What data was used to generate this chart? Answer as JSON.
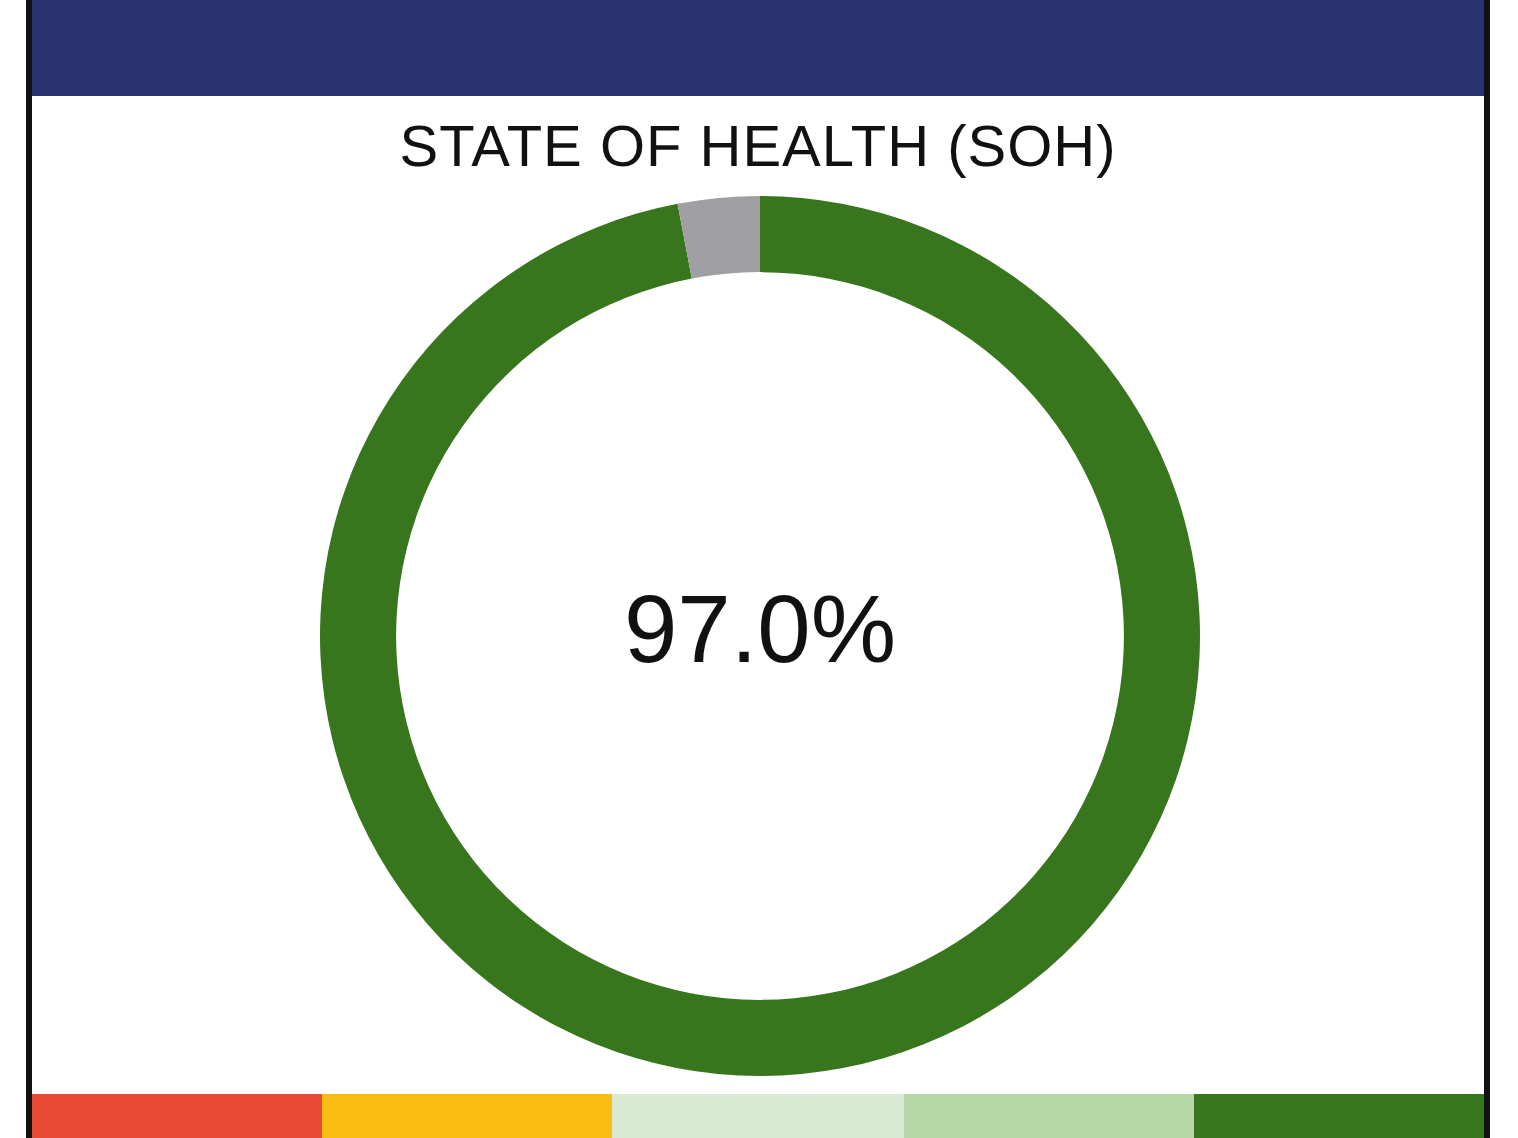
{
  "chart_data": {
    "type": "donut",
    "title": "STATE OF HEALTH (SOH)",
    "categories": [
      null,
      null
    ],
    "values": [
      97,
      3
    ],
    "colors": [
      "#38761d",
      "#a0a0a4"
    ],
    "annotations": [
      "97.0%"
    ]
  }
}
